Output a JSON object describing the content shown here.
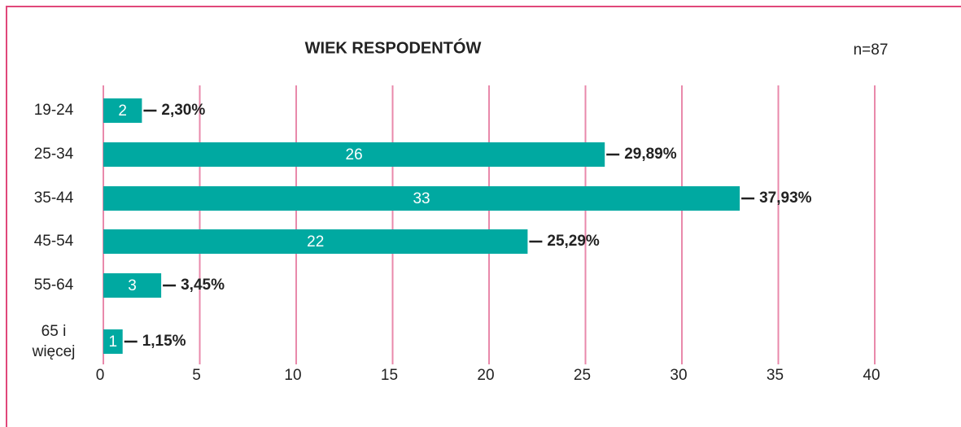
{
  "chart_data": {
    "type": "hbar",
    "title": "WIEK RESPODENTÓW",
    "note": "n=87",
    "categories": [
      "19-24",
      "25-34",
      "35-44",
      "45-54",
      "55-64",
      "65 i więcej"
    ],
    "values": [
      2,
      26,
      33,
      22,
      3,
      1
    ],
    "percentages": [
      2.3,
      29.89,
      37.93,
      25.29,
      3.45,
      1.15
    ],
    "percentage_labels": [
      "2,30%",
      "29,89%",
      "37,93%",
      "25,29%",
      "3,45%",
      "1,15%"
    ],
    "color": "#00a9a1",
    "grid_color": "#e989ab",
    "xlim": [
      0,
      40
    ],
    "xticks": [
      0,
      5,
      10,
      15,
      20,
      25,
      30,
      35,
      40
    ],
    "grid": true
  }
}
